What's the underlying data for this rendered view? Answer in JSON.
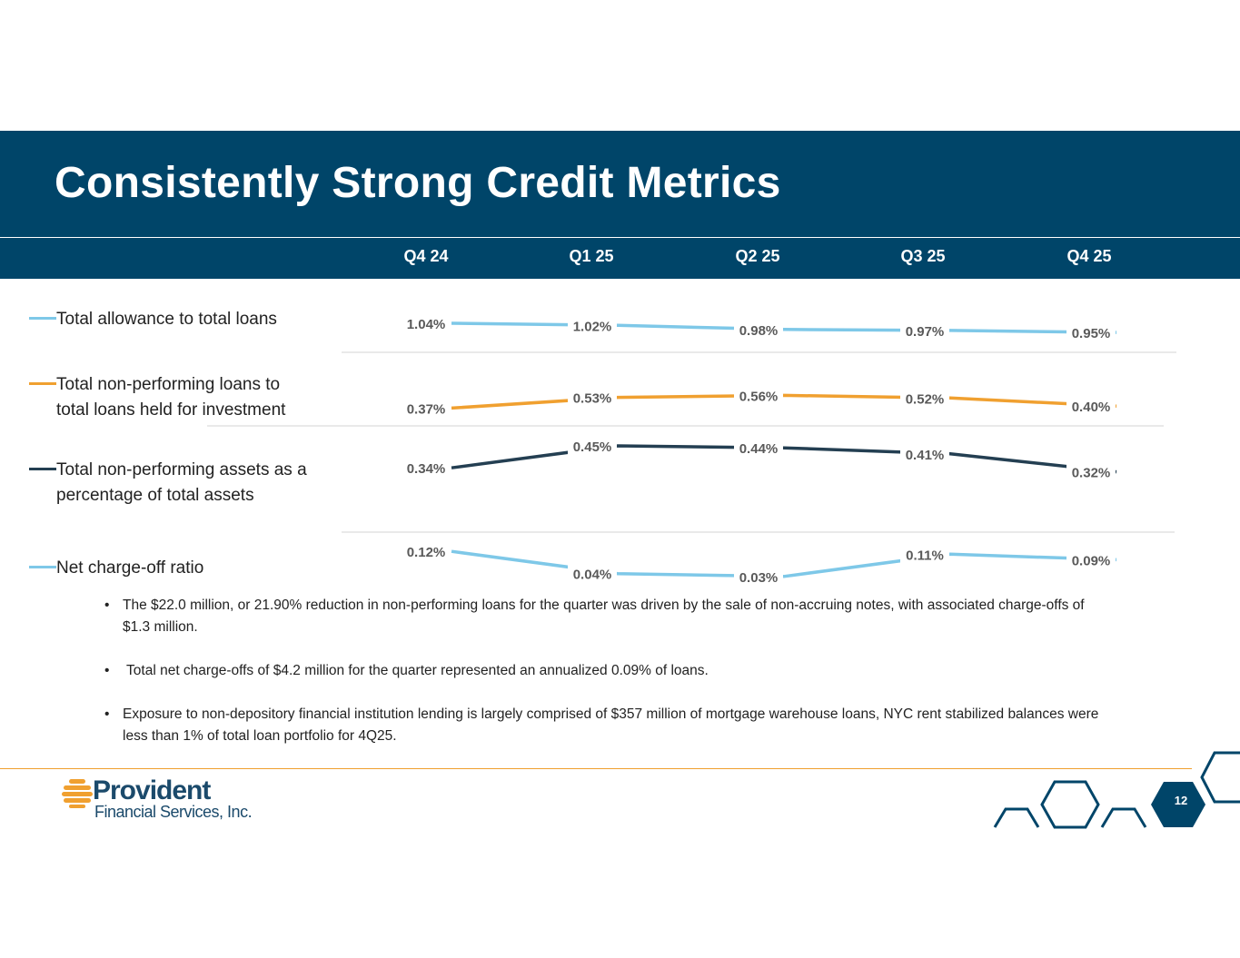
{
  "title": "Consistently Strong Credit Metrics",
  "quarters": [
    "Q4 24",
    "Q1 25",
    "Q2 25",
    "Q3 25",
    "Q4 25"
  ],
  "chart_data": {
    "type": "line",
    "categories": [
      "Q4 24",
      "Q1 25",
      "Q2 25",
      "Q3 25",
      "Q4 25"
    ],
    "series": [
      {
        "name": "Total allowance to total loans",
        "values": [
          1.04,
          1.02,
          0.98,
          0.97,
          0.95
        ],
        "labels": [
          "1.04%",
          "1.02%",
          "0.98%",
          "0.97%",
          "0.95%"
        ],
        "color": "#7ec8e8"
      },
      {
        "name": "Total non-performing loans to total loans held for investment",
        "values": [
          0.37,
          0.53,
          0.56,
          0.52,
          0.4
        ],
        "labels": [
          "0.37%",
          "0.53%",
          "0.56%",
          "0.52%",
          "0.40%"
        ],
        "color": "#f0a030"
      },
      {
        "name": "Total non-performing assets as a percentage of total assets",
        "values": [
          0.34,
          0.45,
          0.44,
          0.41,
          0.32
        ],
        "labels": [
          "0.34%",
          "0.45%",
          "0.44%",
          "0.41%",
          "0.32%"
        ],
        "color": "#243f52"
      },
      {
        "name": "Net charge-off ratio",
        "values": [
          0.12,
          0.04,
          0.03,
          0.11,
          0.09
        ],
        "labels": [
          "0.12%",
          "0.04%",
          "0.03%",
          "0.11%",
          "0.09%"
        ],
        "color": "#7ec8e8"
      }
    ]
  },
  "legend": {
    "items": [
      {
        "line1": "Total allowance to total loans",
        "line2": ""
      },
      {
        "line1": "Total non-performing loans to",
        "line2": "total loans held for investment"
      },
      {
        "line1": "Total non-performing assets as a",
        "line2": "percentage of total assets"
      },
      {
        "line1": "Net charge-off ratio",
        "line2": ""
      }
    ]
  },
  "bullets": [
    "The $22.0 million, or 21.90% reduction in non-performing loans for the quarter was driven by the sale of non-accruing notes, with associated charge-offs of $1.3 million.",
    " Total net charge-offs of $4.2 million for the quarter represented an annualized 0.09% of loans.",
    "Exposure to non-depository financial institution lending is largely comprised of $357 million of mortgage warehouse loans, NYC rent stabilized balances were less than 1% of total loan portfolio for 4Q25."
  ],
  "bullet_symbol": "•",
  "logo": {
    "name": "Provident",
    "subtitle": "Financial Services, Inc."
  },
  "page_number": "12",
  "colors": {
    "navy": "#004569",
    "orange": "#f0a030",
    "light_blue": "#7ec8e8",
    "dark": "#243f52"
  }
}
